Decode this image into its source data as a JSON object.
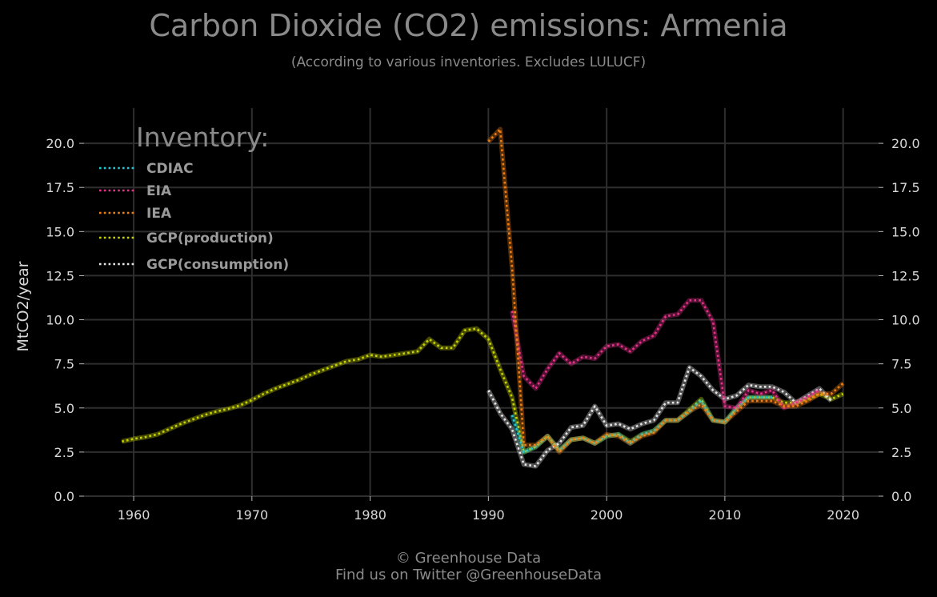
{
  "header": {
    "title": "Carbon Dioxide (CO2) emissions: Armenia",
    "subtitle": "(According to various inventories. Excludes LULUCF)"
  },
  "footer": {
    "line1": "© Greenhouse Data",
    "line2": "Find us on Twitter @GreenhouseData"
  },
  "chart_data": {
    "type": "line",
    "title": "Carbon Dioxide (CO2) emissions: Armenia",
    "subtitle": "(According to various inventories. Excludes LULUCF)",
    "xlabel": "",
    "ylabel": "MtCO2/year",
    "xlim": [
      1955.8,
      2023
    ],
    "ylim": [
      0,
      22
    ],
    "x_ticks": [
      1960,
      1970,
      1980,
      1990,
      2000,
      2010,
      2020
    ],
    "y_ticks": [
      0.0,
      2.5,
      5.0,
      7.5,
      10.0,
      12.5,
      15.0,
      17.5,
      20.0
    ],
    "y_tick_labels": [
      "0.0",
      "2.5",
      "5.0",
      "7.5",
      "10.0",
      "12.5",
      "15.0",
      "17.5",
      "20.0"
    ],
    "grid": true,
    "legend": {
      "title": "Inventory:",
      "placement": "top-left"
    },
    "line_style": "dotted",
    "series": [
      {
        "name": "GCP(production)",
        "color": "#c8d400",
        "x": [
          1959,
          1960,
          1961,
          1962,
          1963,
          1964,
          1965,
          1966,
          1967,
          1968,
          1969,
          1970,
          1971,
          1972,
          1973,
          1974,
          1975,
          1976,
          1977,
          1978,
          1979,
          1980,
          1981,
          1982,
          1983,
          1984,
          1985,
          1986,
          1987,
          1988,
          1989,
          1990,
          1991,
          1992,
          1993,
          1994,
          1995,
          1996,
          1997,
          1998,
          1999,
          2000,
          2001,
          2002,
          2003,
          2004,
          2005,
          2006,
          2007,
          2008,
          2009,
          2010,
          2011,
          2012,
          2013,
          2014,
          2015,
          2016,
          2017,
          2018,
          2019,
          2020
        ],
        "values": [
          3.1,
          3.25,
          3.35,
          3.5,
          3.8,
          4.1,
          4.35,
          4.6,
          4.8,
          4.95,
          5.15,
          5.45,
          5.8,
          6.1,
          6.35,
          6.6,
          6.9,
          7.15,
          7.4,
          7.65,
          7.75,
          8.0,
          7.9,
          8.0,
          8.1,
          8.2,
          8.9,
          8.4,
          8.4,
          9.4,
          9.5,
          8.9,
          7.2,
          5.6,
          2.5,
          2.8,
          3.4,
          2.6,
          3.2,
          3.3,
          3.0,
          3.4,
          3.5,
          3.1,
          3.5,
          3.7,
          4.3,
          4.3,
          4.9,
          5.5,
          4.3,
          4.2,
          5.0,
          5.6,
          5.6,
          5.6,
          5.3,
          5.3,
          5.5,
          5.8,
          5.5,
          5.8
        ]
      },
      {
        "name": "CDIAC",
        "color": "#22c9d4",
        "x": [
          1992,
          1993,
          1994,
          1995,
          1996,
          1997,
          1998,
          1999,
          2000,
          2001,
          2002,
          2003,
          2004,
          2005,
          2006,
          2007,
          2008,
          2009,
          2010,
          2011,
          2012,
          2013,
          2014
        ],
        "values": [
          4.6,
          2.5,
          2.8,
          3.4,
          2.6,
          3.2,
          3.3,
          3.0,
          3.4,
          3.5,
          3.0,
          3.5,
          3.7,
          4.3,
          4.3,
          4.8,
          5.4,
          4.3,
          4.2,
          5.0,
          5.6,
          5.6,
          5.6
        ]
      },
      {
        "name": "GCP(consumption)",
        "color": "#e6e6e6",
        "x": [
          1990,
          1991,
          1992,
          1993,
          1994,
          1995,
          1996,
          1997,
          1998,
          1999,
          2000,
          2001,
          2002,
          2003,
          2004,
          2005,
          2006,
          2007,
          2008,
          2009,
          2010,
          2011,
          2012,
          2013,
          2014,
          2015,
          2016,
          2017,
          2018,
          2019
        ],
        "values": [
          6.0,
          4.7,
          3.8,
          1.8,
          1.7,
          2.6,
          3.0,
          3.9,
          4.0,
          5.1,
          4.0,
          4.1,
          3.8,
          4.1,
          4.3,
          5.3,
          5.3,
          7.3,
          6.8,
          6.0,
          5.5,
          5.7,
          6.3,
          6.2,
          6.2,
          5.9,
          5.3,
          5.7,
          6.1,
          5.4
        ]
      },
      {
        "name": "EIA",
        "color": "#e8318a",
        "x": [
          1992,
          1993,
          1994,
          1995,
          1996,
          1997,
          1998,
          1999,
          2000,
          2001,
          2002,
          2003,
          2004,
          2005,
          2006,
          2007,
          2008,
          2009,
          2010,
          2011,
          2012,
          2013,
          2014,
          2015,
          2016,
          2017,
          2018
        ],
        "values": [
          10.5,
          6.8,
          6.1,
          7.2,
          8.1,
          7.5,
          7.9,
          7.8,
          8.5,
          8.6,
          8.2,
          8.8,
          9.1,
          10.2,
          10.3,
          11.1,
          11.1,
          9.9,
          5.1,
          5.0,
          6.0,
          5.8,
          6.0,
          5.0,
          5.3,
          5.6,
          6.0
        ]
      },
      {
        "name": "IEA",
        "color": "#f07e12",
        "x": [
          1990,
          1991,
          1992,
          1993,
          1994,
          1995,
          1996,
          1997,
          1998,
          1999,
          2000,
          2001,
          2002,
          2003,
          2004,
          2005,
          2006,
          2007,
          2008,
          2009,
          2010,
          2011,
          2012,
          2013,
          2014,
          2015,
          2016,
          2017,
          2018,
          2019,
          2020
        ],
        "values": [
          20.1,
          20.8,
          13.0,
          2.9,
          2.9,
          3.4,
          2.5,
          3.2,
          3.3,
          3.0,
          3.5,
          3.4,
          3.0,
          3.4,
          3.6,
          4.3,
          4.3,
          4.8,
          5.2,
          4.3,
          4.2,
          4.8,
          5.4,
          5.4,
          5.4,
          5.1,
          5.1,
          5.4,
          5.8,
          5.8,
          6.4
        ]
      }
    ],
    "legend_order": [
      "CDIAC",
      "EIA",
      "IEA",
      "GCP(production)",
      "GCP(consumption)"
    ]
  }
}
